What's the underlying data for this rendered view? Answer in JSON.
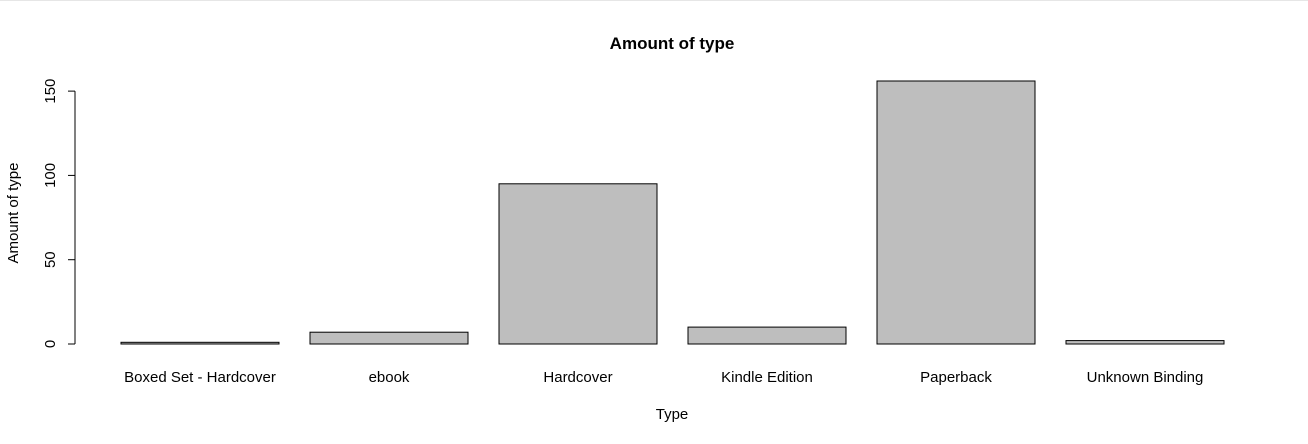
{
  "chart_data": {
    "type": "bar",
    "title": "Amount of type",
    "xlabel": "Type",
    "ylabel": "Amount of type",
    "categories": [
      "Boxed Set - Hardcover",
      "ebook",
      "Hardcover",
      "Kindle Edition",
      "Paperback",
      "Unknown Binding"
    ],
    "values": [
      1,
      7,
      95,
      10,
      156,
      2
    ],
    "yticks": [
      0,
      50,
      100,
      150
    ],
    "ytick_labels": [
      "0",
      "50",
      "100",
      "150"
    ],
    "ylim": [
      0,
      156
    ],
    "grid": false,
    "legend": "none",
    "colors": {
      "bar_fill": "#bebebe",
      "bar_stroke": "#000000"
    }
  }
}
